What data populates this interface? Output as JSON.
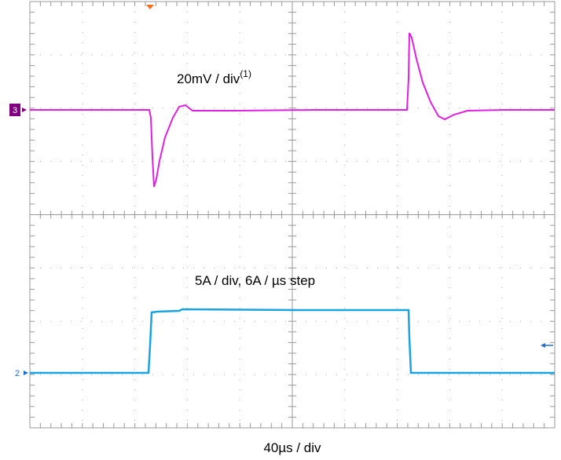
{
  "labels": {
    "channel_3_scale": "20mV / div",
    "channel_3_note": "(1)",
    "channel_2_scale": "5A / div, 6A / µs step",
    "time_scale": "40µs / div",
    "channel_3_marker": "3",
    "channel_2_marker": "2"
  }
}
